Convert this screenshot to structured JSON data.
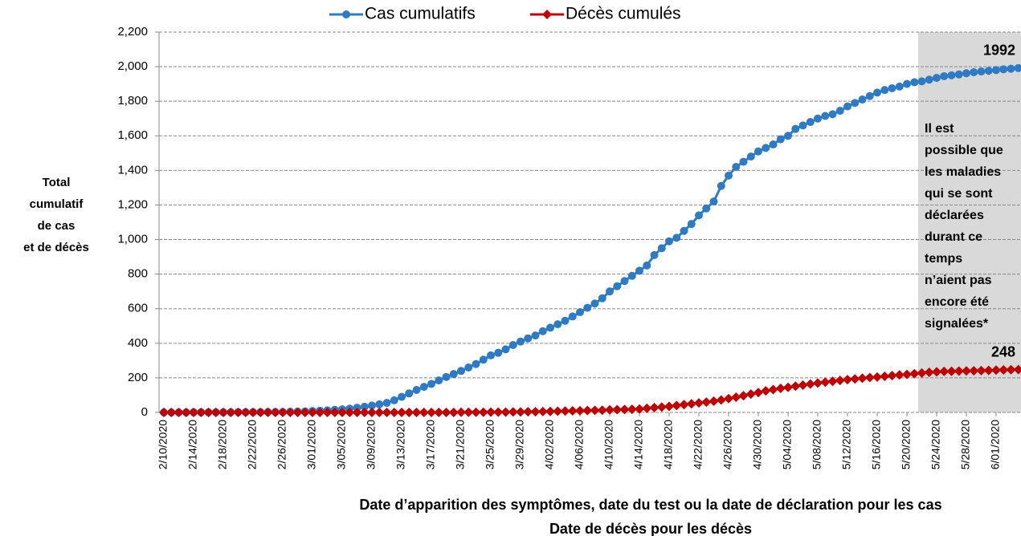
{
  "chart_data": {
    "type": "line",
    "legend_position": "top",
    "grid": true,
    "y_label": [
      "Total",
      "cumulatif",
      "de cas",
      "et de décès"
    ],
    "x_label": [
      "Date d’apparition des symptômes, date du test ou la date de déclaration pour les cas",
      "Date de décès pour les décès"
    ],
    "note": [
      "Il est",
      "possible que",
      "les maladies",
      "qui se sont",
      "déclarées",
      "durant ce",
      "temps",
      "n’aient pas",
      "encore été",
      "signalées*"
    ],
    "ylim": [
      0,
      2200
    ],
    "yticks": [
      0,
      200,
      400,
      600,
      800,
      {
        "value": 1000,
        "label": "1,000"
      },
      {
        "value": 1200,
        "label": "1,200"
      },
      {
        "value": 1400,
        "label": "1,400"
      },
      {
        "value": 1600,
        "label": "1,600"
      },
      {
        "value": 1800,
        "label": "1,800"
      },
      {
        "value": 2000,
        "label": "2,000"
      },
      {
        "value": 2200,
        "label": "2,200"
      }
    ],
    "categories": [
      "2/10/2020",
      null,
      null,
      null,
      "2/14/2020",
      null,
      null,
      null,
      "2/18/2020",
      null,
      null,
      null,
      "2/22/2020",
      null,
      null,
      null,
      "2/26/2020",
      null,
      null,
      null,
      "3/01/2020",
      null,
      null,
      null,
      "3/05/2020",
      null,
      null,
      null,
      "3/09/2020",
      null,
      null,
      null,
      "3/13/2020",
      null,
      null,
      null,
      "3/17/2020",
      null,
      null,
      null,
      "3/21/2020",
      null,
      null,
      null,
      "3/25/2020",
      null,
      null,
      null,
      "3/29/2020",
      null,
      null,
      null,
      "4/02/2020",
      null,
      null,
      null,
      "4/06/2020",
      null,
      null,
      null,
      "4/10/2020",
      null,
      null,
      null,
      "4/14/2020",
      null,
      null,
      null,
      "4/18/2020",
      null,
      null,
      null,
      "4/22/2020",
      null,
      null,
      null,
      "4/26/2020",
      null,
      null,
      null,
      "4/30/2020",
      null,
      null,
      null,
      "5/04/2020",
      null,
      null,
      null,
      "5/08/2020",
      null,
      null,
      null,
      "5/12/2020",
      null,
      null,
      null,
      "5/16/2020",
      null,
      null,
      null,
      "5/20/2020",
      null,
      null,
      null,
      "5/24/2020",
      null,
      null,
      null,
      "5/28/2020",
      null,
      null,
      null,
      "6/01/2020",
      null,
      null,
      null
    ],
    "series": [
      {
        "name": "Cas cumulatifs",
        "color": "#2e7bc4",
        "marker": "circle",
        "end_label": "1992",
        "values": [
          0,
          0,
          0,
          0,
          1,
          1,
          1,
          1,
          1,
          1,
          2,
          2,
          2,
          2,
          3,
          3,
          3,
          4,
          5,
          6,
          8,
          10,
          12,
          15,
          18,
          22,
          27,
          33,
          40,
          47,
          55,
          70,
          90,
          110,
          130,
          148,
          165,
          185,
          205,
          222,
          240,
          260,
          280,
          305,
          330,
          345,
          365,
          390,
          410,
          428,
          445,
          470,
          490,
          510,
          530,
          555,
          580,
          605,
          630,
          660,
          700,
          730,
          760,
          790,
          820,
          850,
          910,
          950,
          990,
          1010,
          1050,
          1090,
          1140,
          1180,
          1220,
          1310,
          1370,
          1420,
          1450,
          1480,
          1510,
          1530,
          1550,
          1580,
          1600,
          1640,
          1660,
          1680,
          1700,
          1715,
          1725,
          1745,
          1770,
          1790,
          1810,
          1830,
          1850,
          1865,
          1875,
          1885,
          1900,
          1910,
          1915,
          1925,
          1935,
          1945,
          1950,
          1955,
          1962,
          1968,
          1972,
          1976,
          1980,
          1985,
          1988,
          1992
        ]
      },
      {
        "name": "Décès cumulés",
        "color": "#c00000",
        "marker": "diamond",
        "end_label": "248",
        "values": [
          0,
          0,
          0,
          0,
          0,
          0,
          0,
          0,
          0,
          0,
          0,
          0,
          0,
          0,
          0,
          0,
          0,
          0,
          0,
          0,
          0,
          0,
          0,
          0,
          0,
          0,
          0,
          0,
          0,
          0,
          0,
          0,
          0,
          0,
          0,
          0,
          0,
          0,
          0,
          0,
          1,
          1,
          1,
          1,
          2,
          2,
          2,
          3,
          3,
          4,
          4,
          5,
          6,
          7,
          8,
          9,
          10,
          11,
          12,
          13,
          15,
          16,
          17,
          18,
          20,
          24,
          28,
          31,
          35,
          40,
          45,
          50,
          55,
          60,
          65,
          72,
          80,
          88,
          97,
          106,
          115,
          125,
          132,
          139,
          145,
          152,
          158,
          164,
          170,
          175,
          180,
          185,
          190,
          194,
          198,
          202,
          205,
          209,
          213,
          217,
          220,
          224,
          228,
          232,
          235,
          237,
          238,
          239,
          240,
          241,
          242,
          243,
          245,
          246,
          247,
          248
        ]
      }
    ]
  }
}
